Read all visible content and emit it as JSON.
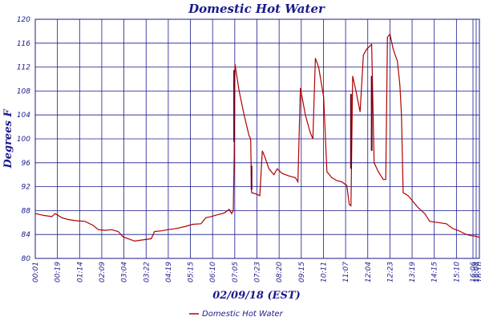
{
  "chart_data": {
    "type": "line",
    "title": "Domestic Hot Water",
    "xlabel": "02/09/18 (EST)",
    "ylabel": "Degrees F",
    "ylim": [
      80,
      120
    ],
    "yticks": [
      "80",
      "84",
      "88",
      "92",
      "96",
      "100",
      "104",
      "108",
      "112",
      "116",
      "120"
    ],
    "xticks": [
      "00:01",
      "00:19",
      "01:14",
      "02:09",
      "03:04",
      "03:22",
      "04:19",
      "05:15",
      "06:10",
      "07:05",
      "07:23",
      "08:20",
      "09:15",
      "10:11",
      "11:07",
      "12:04",
      "12:23",
      "13:19",
      "14:15",
      "15:10",
      "16:06",
      "16:08",
      "16:10"
    ],
    "grid": true,
    "legend_position": "bottom",
    "colors": {
      "line": "#b00000",
      "grid": "#1a1a8c",
      "text": "#1a1a8c"
    },
    "series": [
      {
        "name": "Domestic Hot Water",
        "points": [
          [
            0,
            87.5
          ],
          [
            0.5,
            87.2
          ],
          [
            1,
            87.0
          ],
          [
            1.2,
            87.5
          ],
          [
            1.6,
            86.8
          ],
          [
            2,
            86.5
          ],
          [
            2.5,
            86.3
          ],
          [
            3,
            86.2
          ],
          [
            3.5,
            85.5
          ],
          [
            3.8,
            84.8
          ],
          [
            4.2,
            84.7
          ],
          [
            4.6,
            84.8
          ],
          [
            5,
            84.5
          ],
          [
            5.3,
            83.6
          ],
          [
            5.6,
            83.3
          ],
          [
            6,
            82.9
          ],
          [
            6.5,
            83.1
          ],
          [
            7,
            83.3
          ],
          [
            7.2,
            84.5
          ],
          [
            7.6,
            84.6
          ],
          [
            8,
            84.8
          ],
          [
            8.5,
            85.0
          ],
          [
            9,
            85.3
          ],
          [
            9.5,
            85.7
          ],
          [
            10,
            85.8
          ],
          [
            10.3,
            86.8
          ],
          [
            10.6,
            87.0
          ],
          [
            11,
            87.3
          ],
          [
            11.4,
            87.6
          ],
          [
            11.7,
            88.2
          ],
          [
            11.85,
            87.5
          ],
          [
            11.95,
            88.0
          ],
          [
            12.0,
            97.0
          ],
          [
            12.05,
            112.5
          ],
          [
            12.3,
            108.0
          ],
          [
            12.6,
            104.0
          ],
          [
            12.9,
            100.5
          ],
          [
            13.0,
            100.0
          ],
          [
            13.05,
            91.0
          ],
          [
            13.3,
            90.8
          ],
          [
            13.55,
            90.5
          ],
          [
            13.7,
            98.0
          ],
          [
            13.85,
            97.0
          ],
          [
            14.1,
            95.0
          ],
          [
            14.4,
            94.0
          ],
          [
            14.6,
            95.0
          ],
          [
            14.9,
            94.2
          ],
          [
            15.3,
            93.8
          ],
          [
            15.7,
            93.5
          ],
          [
            15.85,
            92.8
          ],
          [
            16.0,
            108.5
          ],
          [
            16.3,
            104.0
          ],
          [
            16.6,
            101.0
          ],
          [
            16.75,
            100.0
          ],
          [
            16.9,
            113.5
          ],
          [
            17.1,
            112.0
          ],
          [
            17.4,
            107.0
          ],
          [
            17.6,
            94.5
          ],
          [
            17.9,
            93.5
          ],
          [
            18.2,
            93.0
          ],
          [
            18.5,
            92.8
          ],
          [
            18.8,
            92.2
          ],
          [
            18.95,
            89.0
          ],
          [
            19.05,
            88.8
          ],
          [
            19.15,
            110.5
          ],
          [
            19.35,
            108.0
          ],
          [
            19.6,
            104.5
          ],
          [
            19.8,
            114.0
          ],
          [
            20.0,
            115.0
          ],
          [
            20.3,
            115.8
          ],
          [
            20.45,
            96.0
          ],
          [
            20.7,
            94.5
          ],
          [
            21.0,
            93.2
          ],
          [
            21.15,
            93.2
          ],
          [
            21.25,
            117.0
          ],
          [
            21.4,
            117.5
          ],
          [
            21.6,
            115.0
          ],
          [
            21.85,
            113.0
          ],
          [
            22.0,
            109.0
          ],
          [
            22.1,
            104.0
          ],
          [
            22.2,
            91.0
          ],
          [
            22.5,
            90.5
          ],
          [
            22.8,
            89.5
          ],
          [
            23.1,
            88.5
          ],
          [
            23.5,
            87.5
          ],
          [
            23.8,
            86.2
          ],
          [
            24.3,
            86.0
          ],
          [
            24.8,
            85.8
          ],
          [
            25.2,
            85.0
          ],
          [
            25.5,
            84.7
          ],
          [
            25.8,
            84.3
          ],
          [
            26.0,
            84.0
          ],
          [
            26.3,
            83.8
          ],
          [
            26.6,
            83.7
          ],
          [
            26.8,
            83.5
          ]
        ]
      }
    ],
    "highlight_segments": [
      {
        "x": 12.0,
        "y1": 99.5,
        "y2": 111.5
      },
      {
        "x": 13.05,
        "y1": 91.5,
        "y2": 95.5
      },
      {
        "x": 19.05,
        "y1": 95.0,
        "y2": 107.5
      },
      {
        "x": 20.3,
        "y1": 98.0,
        "y2": 110.5
      }
    ]
  }
}
